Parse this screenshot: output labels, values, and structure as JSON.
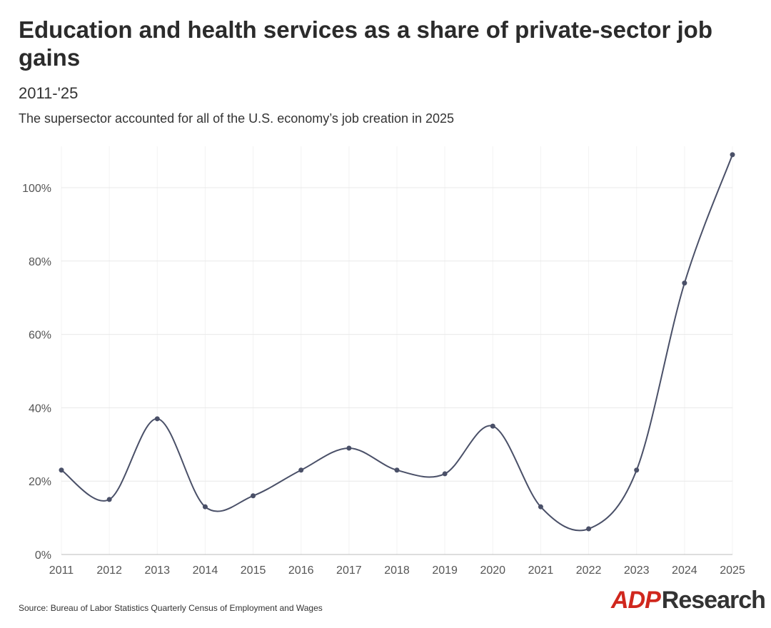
{
  "title": "Education and health services as a share of private-sector job gains",
  "subtitle": "2011-'25",
  "description": "The supersector accounted for all of the U.S. economy’s job creation in 2025",
  "source": "Source: Bureau of Labor Statistics Quarterly Census of Employment and Wages",
  "logo": {
    "brand": "ADP",
    "text": "Research",
    "brand_color": "#d0271d"
  },
  "chart_data": {
    "type": "line",
    "x": [
      "2011",
      "2012",
      "2013",
      "2014",
      "2015",
      "2016",
      "2017",
      "2018",
      "2019",
      "2020",
      "2021",
      "2022",
      "2023",
      "2024",
      "2025"
    ],
    "series": [
      {
        "values": [
          23,
          15,
          37,
          13,
          16,
          23,
          29,
          23,
          22,
          35,
          13,
          7,
          23,
          74,
          109
        ],
        "color": "#4a5068"
      }
    ],
    "yticks": [
      "0%",
      "20%",
      "40%",
      "60%",
      "80%",
      "100%"
    ],
    "ytick_values": [
      0,
      20,
      40,
      60,
      80,
      100
    ],
    "ylim": [
      0,
      110
    ],
    "grid": true,
    "smooth": true
  }
}
